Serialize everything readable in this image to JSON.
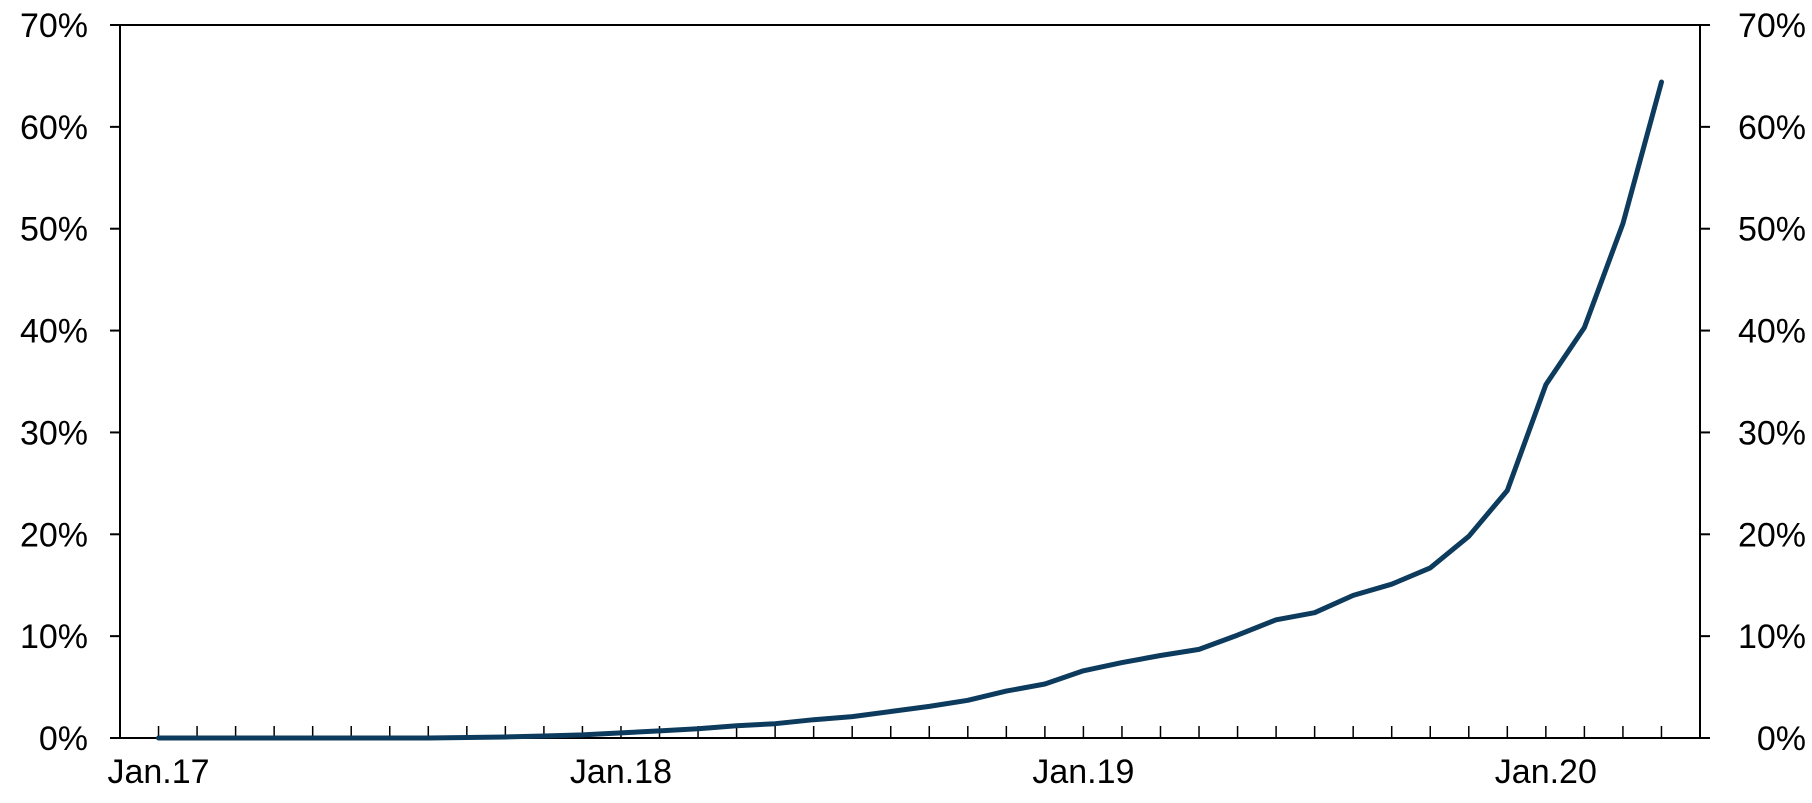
{
  "chart_data": {
    "type": "line",
    "title": "",
    "xlabel": "",
    "ylabel": "",
    "y_ticks": [
      "0%",
      "10%",
      "20%",
      "30%",
      "40%",
      "50%",
      "60%",
      "70%"
    ],
    "y_tick_values": [
      0,
      10,
      20,
      30,
      40,
      50,
      60,
      70
    ],
    "ylim": [
      0,
      70
    ],
    "y_axis_right": true,
    "x_ticks": [
      {
        "label": "Jan.17",
        "date": "2017-01"
      },
      {
        "label": "Jan.18",
        "date": "2018-01"
      },
      {
        "label": "Jan.19",
        "date": "2019-01"
      },
      {
        "label": "Jan.20",
        "date": "2020-01"
      }
    ],
    "xlim": [
      "2016-12",
      "2020-05"
    ],
    "minor_ticks": "monthly",
    "grid": false,
    "line_color": "#0d3b5e",
    "series": [
      {
        "name": "",
        "points": [
          {
            "date": "2017-01",
            "y": 0.0
          },
          {
            "date": "2017-02",
            "y": 0.0
          },
          {
            "date": "2017-03",
            "y": 0.0
          },
          {
            "date": "2017-04",
            "y": 0.0
          },
          {
            "date": "2017-05",
            "y": 0.0
          },
          {
            "date": "2017-06",
            "y": 0.0
          },
          {
            "date": "2017-07",
            "y": 0.0
          },
          {
            "date": "2017-08",
            "y": 0.0
          },
          {
            "date": "2017-09",
            "y": 0.05
          },
          {
            "date": "2017-10",
            "y": 0.1
          },
          {
            "date": "2017-11",
            "y": 0.2
          },
          {
            "date": "2017-12",
            "y": 0.3
          },
          {
            "date": "2018-01",
            "y": 0.5
          },
          {
            "date": "2018-02",
            "y": 0.7
          },
          {
            "date": "2018-03",
            "y": 0.9
          },
          {
            "date": "2018-04",
            "y": 1.2
          },
          {
            "date": "2018-05",
            "y": 1.4
          },
          {
            "date": "2018-06",
            "y": 1.8
          },
          {
            "date": "2018-07",
            "y": 2.1
          },
          {
            "date": "2018-08",
            "y": 2.6
          },
          {
            "date": "2018-09",
            "y": 3.1
          },
          {
            "date": "2018-10",
            "y": 3.7
          },
          {
            "date": "2018-11",
            "y": 4.6
          },
          {
            "date": "2018-12",
            "y": 5.3
          },
          {
            "date": "2019-01",
            "y": 6.6
          },
          {
            "date": "2019-02",
            "y": 7.4
          },
          {
            "date": "2019-03",
            "y": 8.1
          },
          {
            "date": "2019-04",
            "y": 8.7
          },
          {
            "date": "2019-05",
            "y": 10.1
          },
          {
            "date": "2019-06",
            "y": 11.6
          },
          {
            "date": "2019-07",
            "y": 12.3
          },
          {
            "date": "2019-08",
            "y": 14.0
          },
          {
            "date": "2019-09",
            "y": 15.1
          },
          {
            "date": "2019-10",
            "y": 16.7
          },
          {
            "date": "2019-11",
            "y": 19.8
          },
          {
            "date": "2019-12",
            "y": 24.3
          },
          {
            "date": "2020-01",
            "y": 34.7
          },
          {
            "date": "2020-02",
            "y": 40.3
          },
          {
            "date": "2020-03",
            "y": 50.5
          },
          {
            "date": "2020-04",
            "y": 64.4
          }
        ]
      }
    ]
  }
}
